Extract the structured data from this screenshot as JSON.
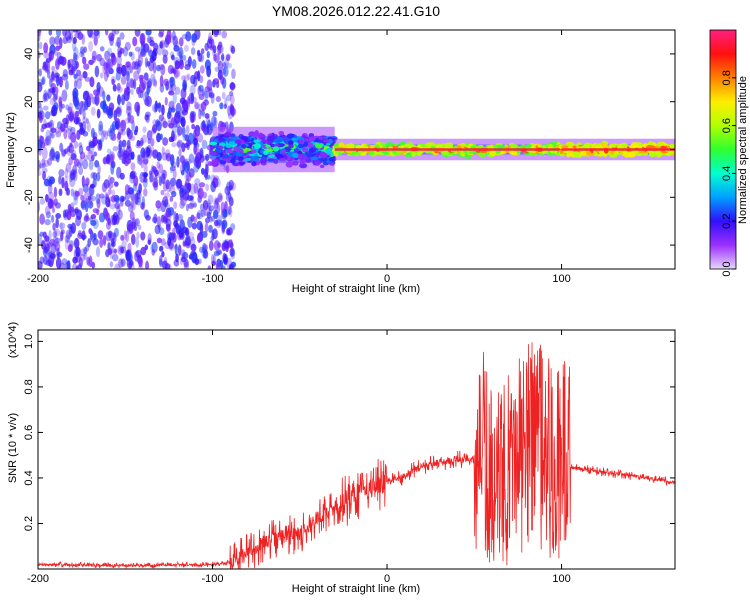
{
  "title": "YM08.2026.012.22.41.G10",
  "chart_data": [
    {
      "type": "heatmap",
      "xlabel": "Height of straight line (km)",
      "ylabel": "Frequency (Hz)",
      "xlim": [
        -200,
        165
      ],
      "ylim": [
        -50,
        50
      ],
      "x_ticks": [
        -200,
        -100,
        0,
        100
      ],
      "y_ticks": [
        -40,
        -20,
        0,
        20,
        40
      ],
      "colorbar": {
        "label": "Normalized spectral amplitude",
        "range": [
          0,
          1
        ],
        "ticks": [
          0.0,
          0.2,
          0.4,
          0.6,
          0.8
        ],
        "tick_labels": [
          "0.0",
          "0.2",
          "0.4",
          "0.6",
          "0.8"
        ],
        "colormap": "rainbow"
      },
      "regions": [
        {
          "x": [
            -200,
            -88
          ],
          "freq_range": [
            -50,
            50
          ],
          "amplitude": [
            0.0,
            0.1
          ],
          "pattern": "scattered noise"
        },
        {
          "x": [
            -100,
            -30
          ],
          "freq_range": [
            -8,
            8
          ],
          "amplitude": [
            0.1,
            0.6
          ],
          "pattern": "broad band"
        },
        {
          "x": [
            -30,
            100
          ],
          "freq_range": [
            -3,
            3
          ],
          "amplitude": [
            0.5,
            0.95
          ],
          "pattern": "line near 0 Hz"
        },
        {
          "x": [
            100,
            165
          ],
          "freq_range": [
            -3,
            3
          ],
          "amplitude": [
            0.6,
            0.95
          ],
          "pattern": "steady line near 0 Hz"
        }
      ],
      "grid": false
    },
    {
      "type": "line",
      "xlabel": "Height of straight line (km)",
      "ylabel": "SNR (10 * v/v)",
      "y_multiplier": "(x10^4)",
      "xlim": [
        -200,
        165
      ],
      "ylim": [
        0,
        1.05
      ],
      "x_ticks": [
        -200,
        -100,
        0,
        100
      ],
      "y_ticks": [
        0.2,
        0.4,
        0.6,
        0.8,
        1.0
      ],
      "series": [
        {
          "color": "#ee2222",
          "x": [
            -200,
            -150,
            -100,
            -90,
            -80,
            -70,
            -60,
            -50,
            -40,
            -30,
            -20,
            -10,
            0,
            10,
            20,
            30,
            40,
            50,
            55,
            60,
            70,
            80,
            85,
            90,
            100,
            105,
            110,
            120,
            140,
            165
          ],
          "y": [
            0.02,
            0.015,
            0.02,
            0.03,
            0.07,
            0.12,
            0.14,
            0.16,
            0.22,
            0.27,
            0.32,
            0.35,
            0.38,
            0.41,
            0.45,
            0.47,
            0.48,
            0.48,
            0.47,
            0.3,
            0.4,
            0.5,
            0.55,
            0.45,
            0.42,
            0.45,
            0.44,
            0.43,
            0.41,
            0.38
          ]
        }
      ],
      "grid": false
    }
  ]
}
